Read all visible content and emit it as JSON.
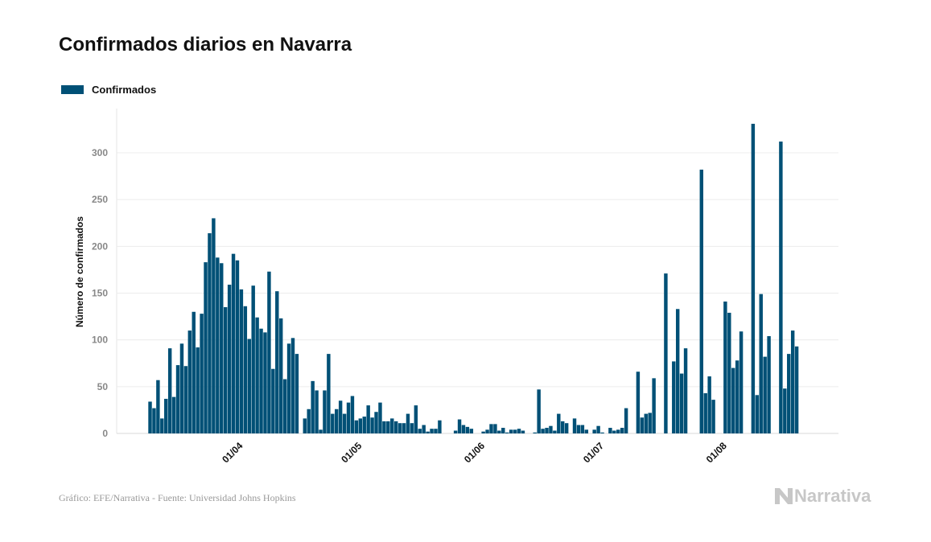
{
  "chart_data": {
    "type": "bar",
    "title": "Confirmados diarios en Navarra",
    "ylabel": "Número de confirmados",
    "xlabel": "",
    "ylim": [
      0,
      340
    ],
    "y_ticks": [
      "0",
      "50",
      "100",
      "150",
      "200",
      "250",
      "300"
    ],
    "x_ticks": [
      "01/04",
      "01/05",
      "01/06",
      "01/07",
      "01/08"
    ],
    "grid": true,
    "legend_position": "top-left",
    "bar_color": "#005076",
    "series": [
      {
        "name": "Confirmados"
      }
    ],
    "x": [
      "11/03",
      "12/03",
      "13/03",
      "14/03",
      "15/03",
      "16/03",
      "17/03",
      "18/03",
      "19/03",
      "20/03",
      "21/03",
      "22/03",
      "23/03",
      "24/03",
      "25/03",
      "26/03",
      "27/03",
      "28/03",
      "29/03",
      "30/03",
      "31/03",
      "01/04",
      "02/04",
      "03/04",
      "04/04",
      "05/04",
      "06/04",
      "07/04",
      "08/04",
      "09/04",
      "10/04",
      "11/04",
      "12/04",
      "13/04",
      "14/04",
      "15/04",
      "16/04",
      "17/04",
      "18/04",
      "19/04",
      "20/04",
      "21/04",
      "22/04",
      "23/04",
      "24/04",
      "25/04",
      "26/04",
      "27/04",
      "28/04",
      "29/04",
      "30/04",
      "01/05",
      "02/05",
      "03/05",
      "04/05",
      "05/05",
      "06/05",
      "07/05",
      "08/05",
      "09/05",
      "10/05",
      "11/05",
      "12/05",
      "13/05",
      "14/05",
      "15/05",
      "16/05",
      "17/05",
      "18/05",
      "19/05",
      "20/05",
      "21/05",
      "22/05",
      "23/05",
      "24/05",
      "25/05",
      "26/05",
      "27/05",
      "28/05",
      "29/05",
      "30/05",
      "31/05",
      "01/06",
      "02/06",
      "03/06",
      "04/06",
      "05/06",
      "06/06",
      "07/06",
      "08/06",
      "09/06",
      "10/06",
      "11/06",
      "12/06",
      "13/06",
      "14/06",
      "15/06",
      "16/06",
      "17/06",
      "18/06",
      "19/06",
      "20/06",
      "21/06",
      "22/06",
      "23/06",
      "24/06",
      "25/06",
      "26/06",
      "27/06",
      "28/06",
      "29/06",
      "30/06",
      "01/07",
      "02/07",
      "03/07",
      "04/07",
      "05/07",
      "06/07",
      "07/07",
      "08/07",
      "09/07",
      "10/07",
      "11/07",
      "12/07",
      "13/07",
      "14/07",
      "15/07",
      "16/07",
      "17/07",
      "18/07",
      "19/07",
      "20/07",
      "21/07",
      "22/07",
      "23/07",
      "24/07",
      "25/07",
      "26/07",
      "27/07",
      "28/07",
      "29/07",
      "30/07",
      "31/07",
      "01/08",
      "02/08",
      "03/08",
      "04/08",
      "05/08",
      "06/08",
      "07/08",
      "08/08",
      "09/08",
      "10/08",
      "11/08",
      "12/08",
      "13/08",
      "14/08",
      "15/08",
      "16/08",
      "17/08",
      "18/08",
      "19/08",
      "20/08",
      "21/08"
    ],
    "values": [
      34,
      27,
      57,
      16,
      37,
      91,
      39,
      73,
      96,
      72,
      110,
      130,
      92,
      128,
      183,
      214,
      230,
      188,
      182,
      135,
      159,
      192,
      185,
      154,
      136,
      101,
      158,
      124,
      112,
      108,
      173,
      69,
      152,
      123,
      58,
      96,
      102,
      85,
      null,
      16,
      26,
      56,
      46,
      4,
      46,
      85,
      21,
      26,
      35,
      21,
      33,
      40,
      14,
      16,
      18,
      30,
      17,
      23,
      33,
      13,
      13,
      16,
      13,
      11,
      11,
      21,
      11,
      30,
      5,
      9,
      2,
      5,
      5,
      14,
      null,
      null,
      null,
      3,
      15,
      9,
      7,
      5,
      null,
      null,
      2,
      4,
      10,
      10,
      3,
      6,
      1,
      4,
      4,
      5,
      3,
      null,
      null,
      1,
      47,
      5,
      6,
      8,
      3,
      21,
      13,
      11,
      null,
      16,
      9,
      9,
      4,
      null,
      4,
      8,
      1,
      null,
      6,
      3,
      4,
      6,
      27,
      null,
      null,
      66,
      17,
      21,
      22,
      59,
      null,
      null,
      171,
      null,
      77,
      133,
      64,
      91,
      null,
      null,
      null,
      282,
      43,
      61,
      36,
      null,
      null,
      141,
      129,
      70,
      78,
      109,
      null,
      null,
      331,
      41,
      149,
      82,
      104,
      null,
      null,
      312,
      48,
      85,
      110,
      93
    ]
  },
  "footer": {
    "source": "Gráfico: EFE/Narrativa - Fuente: Universidad Johns Hopkins"
  },
  "logo": {
    "text": "Narrativa"
  }
}
